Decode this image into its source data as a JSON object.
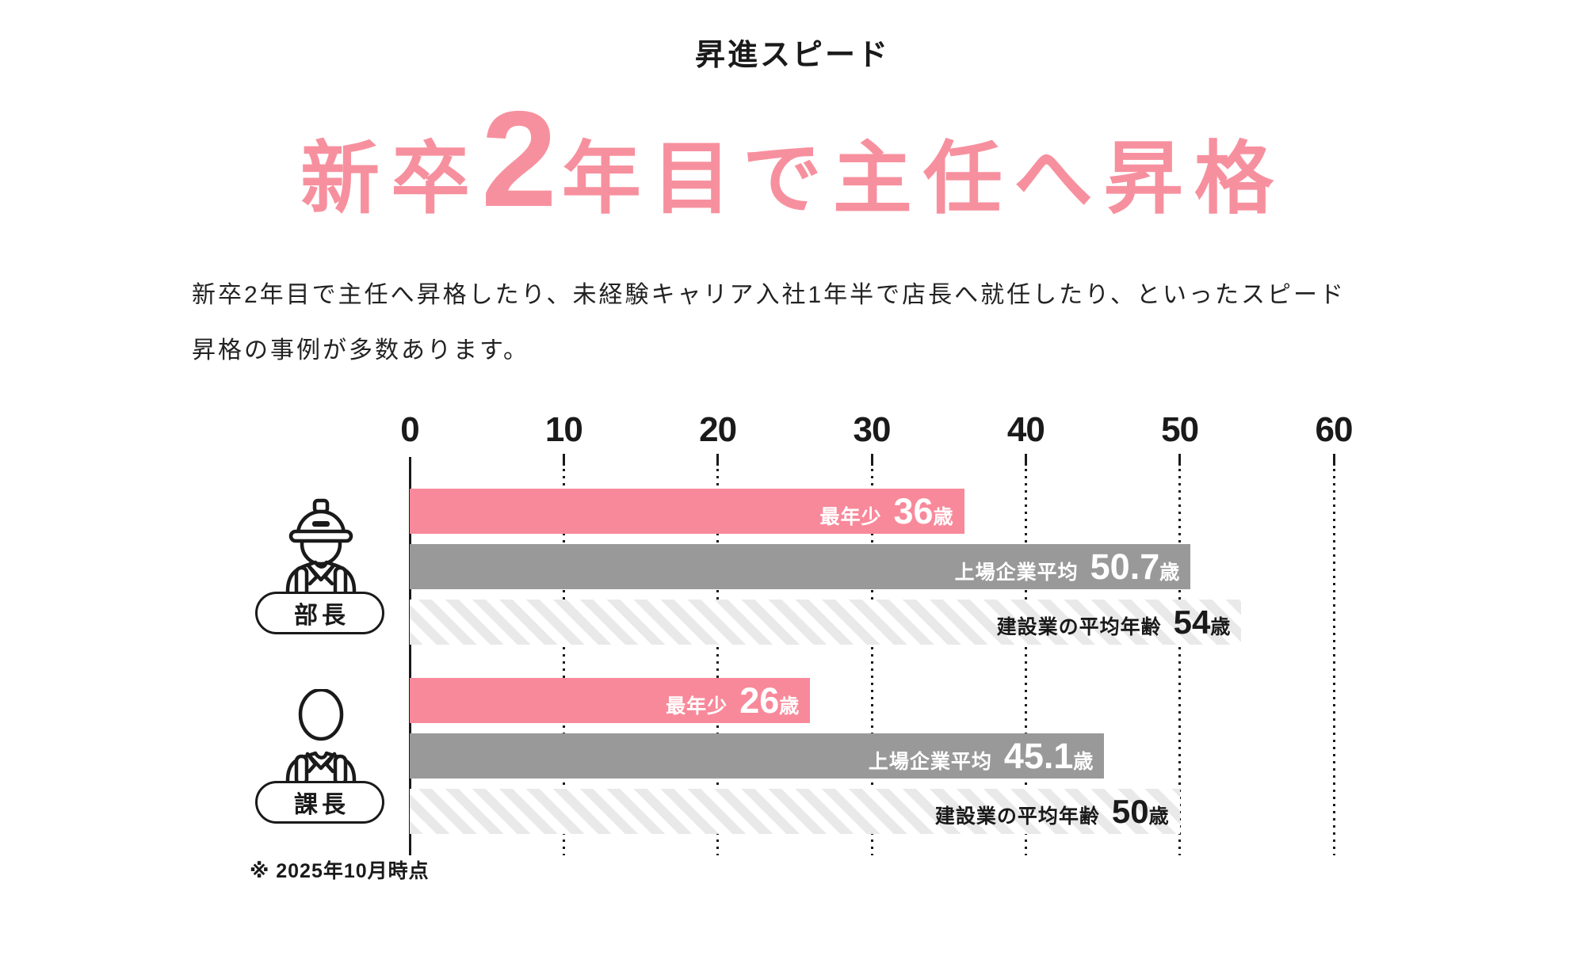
{
  "page": {
    "title": "昇進スピード",
    "heading": {
      "prefix": "新卒",
      "big_number": "2",
      "suffix": "年目で主任へ昇格"
    },
    "description": {
      "line1": "新卒2年目で主任へ昇格したり、未経験キャリア入社1年半で店長へ就任したり、といったスピード",
      "line2": "昇格の事例が多数あります。"
    },
    "footnote": "※ 2025年10月時点"
  },
  "colors": {
    "heading_pink": "#F7909E",
    "bar_pink": "#F8899A",
    "bar_gray": "#999999",
    "hatch_gray": "#E9E9E9",
    "text_black": "#1A1A1A"
  },
  "chart_data": {
    "type": "bar",
    "orientation": "horizontal",
    "value_unit": "歳",
    "x_axis": {
      "min": 0,
      "max": 60,
      "ticks": [
        0,
        10,
        20,
        30,
        40,
        50,
        60
      ],
      "gridlines": "dotted-vertical"
    },
    "legend_position": "none",
    "groups": [
      {
        "label": "部長",
        "icon": "construction-worker-icon",
        "bars": [
          {
            "key": "youngest",
            "series": "最年少",
            "value": 36,
            "value_label": "36",
            "unit": "歳",
            "style": "pink"
          },
          {
            "key": "listed-company-average",
            "series": "上場企業平均",
            "value": 50.7,
            "value_label": "50.7",
            "unit": "歳",
            "style": "gray"
          },
          {
            "key": "construction-industry-average",
            "series": "建設業の平均年齢",
            "value": 54,
            "value_label": "54",
            "unit": "歳",
            "style": "hatch"
          }
        ]
      },
      {
        "label": "課長",
        "icon": "business-person-icon",
        "bars": [
          {
            "key": "youngest",
            "series": "最年少",
            "value": 26,
            "value_label": "26",
            "unit": "歳",
            "style": "pink"
          },
          {
            "key": "listed-company-average",
            "series": "上場企業平均",
            "value": 45.1,
            "value_label": "45.1",
            "unit": "歳",
            "style": "gray"
          },
          {
            "key": "construction-industry-average",
            "series": "建設業の平均年齢",
            "value": 50,
            "value_label": "50",
            "unit": "歳",
            "style": "hatch"
          }
        ]
      }
    ]
  }
}
